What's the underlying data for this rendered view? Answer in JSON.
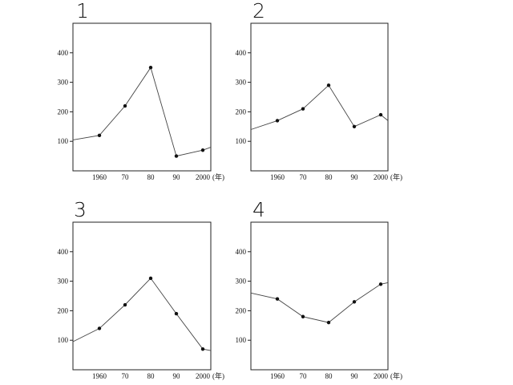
{
  "chart_data": [
    {
      "type": "line",
      "label": "1",
      "x": [
        1960,
        1970,
        1980,
        1990,
        2000
      ],
      "xtick_labels": [
        "1960",
        "70",
        "80",
        "90",
        "2000"
      ],
      "x_unit": "(年)",
      "yticks": [
        100,
        200,
        300,
        400
      ],
      "ylim": [
        0,
        500
      ],
      "values": [
        120,
        220,
        350,
        50,
        70
      ],
      "line_start": 105,
      "line_end": 80
    },
    {
      "type": "line",
      "label": "2",
      "x": [
        1960,
        1970,
        1980,
        1990,
        2000
      ],
      "xtick_labels": [
        "1960",
        "70",
        "80",
        "90",
        "2000"
      ],
      "x_unit": "(年)",
      "yticks": [
        100,
        200,
        300,
        400
      ],
      "ylim": [
        0,
        500
      ],
      "values": [
        170,
        210,
        290,
        150,
        190
      ],
      "line_start": 140,
      "line_end": 170
    },
    {
      "type": "line",
      "label": "3",
      "x": [
        1960,
        1970,
        1980,
        1990,
        2000
      ],
      "xtick_labels": [
        "1960",
        "70",
        "80",
        "90",
        "2000"
      ],
      "x_unit": "(年)",
      "yticks": [
        100,
        200,
        300,
        400
      ],
      "ylim": [
        0,
        500
      ],
      "values": [
        140,
        220,
        310,
        190,
        70
      ],
      "line_start": 95,
      "line_end": 65
    },
    {
      "type": "line",
      "label": "4",
      "x": [
        1960,
        1970,
        1980,
        1990,
        2000
      ],
      "xtick_labels": [
        "1960",
        "70",
        "80",
        "90",
        "2000"
      ],
      "x_unit": "(年)",
      "yticks": [
        100,
        200,
        300,
        400
      ],
      "ylim": [
        0,
        500
      ],
      "values": [
        240,
        180,
        160,
        230,
        290
      ],
      "line_start": 260,
      "line_end": 295
    }
  ]
}
